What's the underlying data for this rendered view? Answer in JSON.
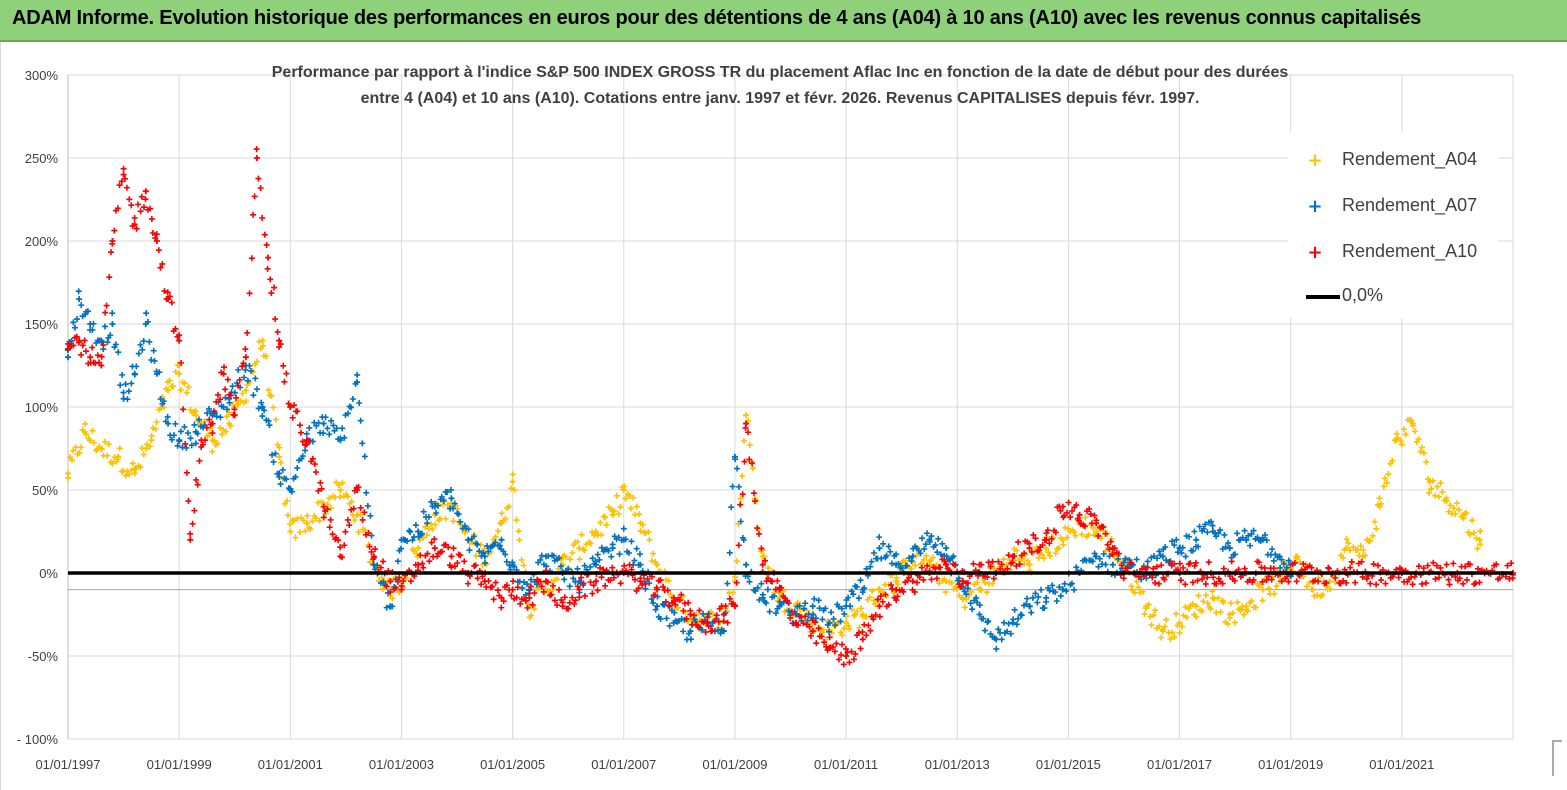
{
  "banner": {
    "title": "ADAM Informe. Evolution historique des performances en euros pour des détentions de 4 ans (A04) à 10 ans (A10) avec les revenus connus capitalisés"
  },
  "chart_data": {
    "type": "scatter",
    "title_line1": "Performance par rapport à l'indice S&P 500 INDEX GROSS TR  du placement Aflac Inc en fonction de la date de début pour des durées",
    "title_line2": "entre 4 (A04) et 10 ans (A10). Cotations entre janv. 1997 et févr. 2026. Revenus CAPITALISES depuis févr. 1997.",
    "xlabel": "",
    "ylabel": "",
    "x_range": [
      "1997-01-01",
      "2023-01-01"
    ],
    "ylim": [
      -100,
      300
    ],
    "y_ticks": [
      "300%",
      "250%",
      "200%",
      "150%",
      "100%",
      "50%",
      "0%",
      "-50%",
      "- 100%"
    ],
    "y_tick_values": [
      300,
      250,
      200,
      150,
      100,
      50,
      0,
      -50,
      -100
    ],
    "x_ticks": [
      "01/01/1997",
      "01/01/1999",
      "01/01/2001",
      "01/01/2003",
      "01/01/2005",
      "01/01/2007",
      "01/01/2009",
      "01/01/2011",
      "01/01/2013",
      "01/01/2015",
      "01/01/2017",
      "01/01/2019",
      "01/01/2021"
    ],
    "x_tick_years": [
      1997,
      1999,
      2001,
      2003,
      2005,
      2007,
      2009,
      2011,
      2013,
      2015,
      2017,
      2019,
      2021
    ],
    "grid": "horizontal and vertical gridlines",
    "legend_position": "top-right",
    "reference_line": {
      "name": "0,0%",
      "value": 0,
      "color": "#000000"
    },
    "series": [
      {
        "name": "Rendement_A04",
        "color": "#ffc000",
        "marker": "+",
        "x": [
          1997.0,
          1997.3,
          1997.6,
          1997.9,
          1998.2,
          1998.5,
          1998.8,
          1999.0,
          1999.3,
          1999.6,
          1999.9,
          2000.2,
          2000.5,
          2000.8,
          2001.0,
          2001.3,
          2001.6,
          2001.9,
          2002.2,
          2002.5,
          2002.8,
          2003.0,
          2003.3,
          2003.6,
          2003.9,
          2004.2,
          2004.5,
          2004.8,
          2005.0,
          2005.3,
          2005.6,
          2005.9,
          2006.2,
          2006.5,
          2006.8,
          2007.0,
          2007.3,
          2007.6,
          2007.9,
          2008.2,
          2008.5,
          2008.8,
          2009.0,
          2009.2,
          2009.5,
          2009.8,
          2010.1,
          2010.4,
          2010.7,
          2011.0,
          2011.3,
          2011.6,
          2011.9,
          2012.2,
          2012.5,
          2012.8,
          2013.1,
          2013.4,
          2013.7,
          2014.0,
          2014.3,
          2014.6,
          2014.9,
          2015.2,
          2015.5,
          2015.8,
          2016.1,
          2016.4,
          2016.7,
          2017.0,
          2017.3,
          2017.6,
          2017.9,
          2018.2,
          2018.5,
          2018.8,
          2019.1,
          2019.4,
          2019.7,
          2020.0,
          2020.3,
          2020.6,
          2020.9,
          2021.2,
          2021.5,
          2021.8,
          2022.1,
          2022.4
        ],
        "y": [
          60,
          85,
          75,
          70,
          60,
          80,
          110,
          120,
          95,
          80,
          90,
          110,
          140,
          70,
          25,
          30,
          40,
          50,
          35,
          5,
          -10,
          -5,
          15,
          35,
          40,
          20,
          10,
          30,
          55,
          -20,
          -10,
          5,
          15,
          25,
          35,
          50,
          30,
          5,
          -15,
          -25,
          -30,
          -25,
          -5,
          95,
          10,
          -15,
          -20,
          -30,
          -35,
          -30,
          -25,
          -10,
          -5,
          10,
          5,
          -5,
          -15,
          -10,
          0,
          10,
          5,
          15,
          20,
          30,
          25,
          15,
          0,
          -20,
          -35,
          -30,
          -20,
          -15,
          -25,
          -20,
          -10,
          -5,
          10,
          -10,
          -5,
          15,
          10,
          40,
          80,
          90,
          55,
          45,
          35,
          20
        ]
      },
      {
        "name": "Rendement_A07",
        "color": "#0070c0",
        "marker": "+",
        "x": [
          1997.0,
          1997.2,
          1997.4,
          1997.6,
          1997.8,
          1998.0,
          1998.2,
          1998.4,
          1998.6,
          1998.8,
          1999.0,
          1999.3,
          1999.6,
          1999.9,
          2000.2,
          2000.5,
          2000.8,
          2001.0,
          2001.3,
          2001.6,
          2001.9,
          2002.2,
          2002.5,
          2002.8,
          2003.0,
          2003.3,
          2003.6,
          2003.9,
          2004.2,
          2004.5,
          2004.8,
          2005.0,
          2005.3,
          2005.6,
          2005.9,
          2006.2,
          2006.5,
          2006.8,
          2007.0,
          2007.3,
          2007.6,
          2007.9,
          2008.2,
          2008.5,
          2008.8,
          2009.0,
          2009.2,
          2009.5,
          2009.8,
          2010.1,
          2010.4,
          2010.7,
          2011.0,
          2011.3,
          2011.6,
          2011.9,
          2012.2,
          2012.5,
          2012.8,
          2013.1,
          2013.4,
          2013.7,
          2014.0,
          2014.3,
          2014.6,
          2014.9,
          2015.2,
          2015.5,
          2015.8,
          2016.1,
          2016.4,
          2016.7,
          2017.0,
          2017.3,
          2017.6,
          2017.9,
          2018.2,
          2018.5,
          2018.8,
          2019.0
        ],
        "y": [
          130,
          165,
          150,
          140,
          150,
          105,
          120,
          150,
          120,
          90,
          80,
          85,
          95,
          105,
          125,
          100,
          60,
          50,
          80,
          90,
          80,
          115,
          5,
          -20,
          20,
          25,
          40,
          45,
          20,
          10,
          20,
          5,
          -10,
          10,
          0,
          -5,
          5,
          15,
          20,
          5,
          -20,
          -30,
          -35,
          -30,
          -35,
          70,
          5,
          -15,
          -20,
          -25,
          -20,
          -30,
          -20,
          -10,
          15,
          5,
          10,
          20,
          15,
          -5,
          -25,
          -40,
          -30,
          -20,
          -15,
          -10,
          0,
          10,
          5,
          5,
          0,
          10,
          15,
          20,
          25,
          15,
          20,
          20,
          10,
          5
        ]
      },
      {
        "name": "Rendement_A10",
        "color": "#ff0000",
        "marker": "+",
        "x": [
          1997.0,
          1997.2,
          1997.4,
          1997.6,
          1997.8,
          1998.0,
          1998.2,
          1998.4,
          1998.6,
          1998.8,
          1999.0,
          1999.2,
          1999.4,
          1999.6,
          1999.8,
          2000.0,
          2000.2,
          2000.4,
          2000.6,
          2000.8,
          2001.0,
          2001.3,
          2001.6,
          2001.9,
          2002.2,
          2002.5,
          2002.8,
          2003.0,
          2003.3,
          2003.6,
          2003.9,
          2004.2,
          2004.5,
          2004.8,
          2005.0,
          2005.3,
          2005.6,
          2005.9,
          2006.2,
          2006.5,
          2006.8,
          2007.0,
          2007.3,
          2007.6,
          2007.9,
          2008.2,
          2008.5,
          2008.8,
          2009.0,
          2009.2,
          2009.5,
          2009.8,
          2010.1,
          2010.4,
          2010.7,
          2011.0,
          2011.3,
          2011.6,
          2011.9,
          2012.2,
          2012.5,
          2012.8,
          2013.1,
          2013.4,
          2013.7,
          2014.0,
          2014.3,
          2014.6,
          2014.9,
          2015.2,
          2015.5,
          2015.8,
          2016.0,
          2017.0,
          2018.0,
          2019.0,
          2020.0,
          2021.0,
          2022.0,
          2023.0
        ],
        "y": [
          135,
          140,
          130,
          125,
          200,
          240,
          210,
          230,
          200,
          165,
          140,
          20,
          80,
          90,
          120,
          95,
          130,
          250,
          190,
          140,
          100,
          80,
          40,
          10,
          50,
          10,
          -5,
          -10,
          5,
          15,
          10,
          0,
          -5,
          -15,
          -10,
          -15,
          -5,
          -20,
          -10,
          -5,
          0,
          0,
          -5,
          -10,
          -15,
          -25,
          -30,
          -25,
          -20,
          90,
          5,
          -10,
          -30,
          -35,
          -45,
          -50,
          -40,
          -20,
          -10,
          -5,
          0,
          5,
          -5,
          5,
          0,
          10,
          15,
          20,
          40,
          35,
          30,
          15,
          0,
          0,
          0,
          0,
          0,
          0,
          0,
          0
        ]
      }
    ]
  },
  "legend": {
    "items": [
      {
        "label": "Rendement_A04",
        "color": "#ffc000"
      },
      {
        "label": "Rendement_A07",
        "color": "#0070c0"
      },
      {
        "label": "Rendement_A10",
        "color": "#ff0000"
      },
      {
        "label": "0,0%",
        "color": "#000000"
      }
    ]
  }
}
